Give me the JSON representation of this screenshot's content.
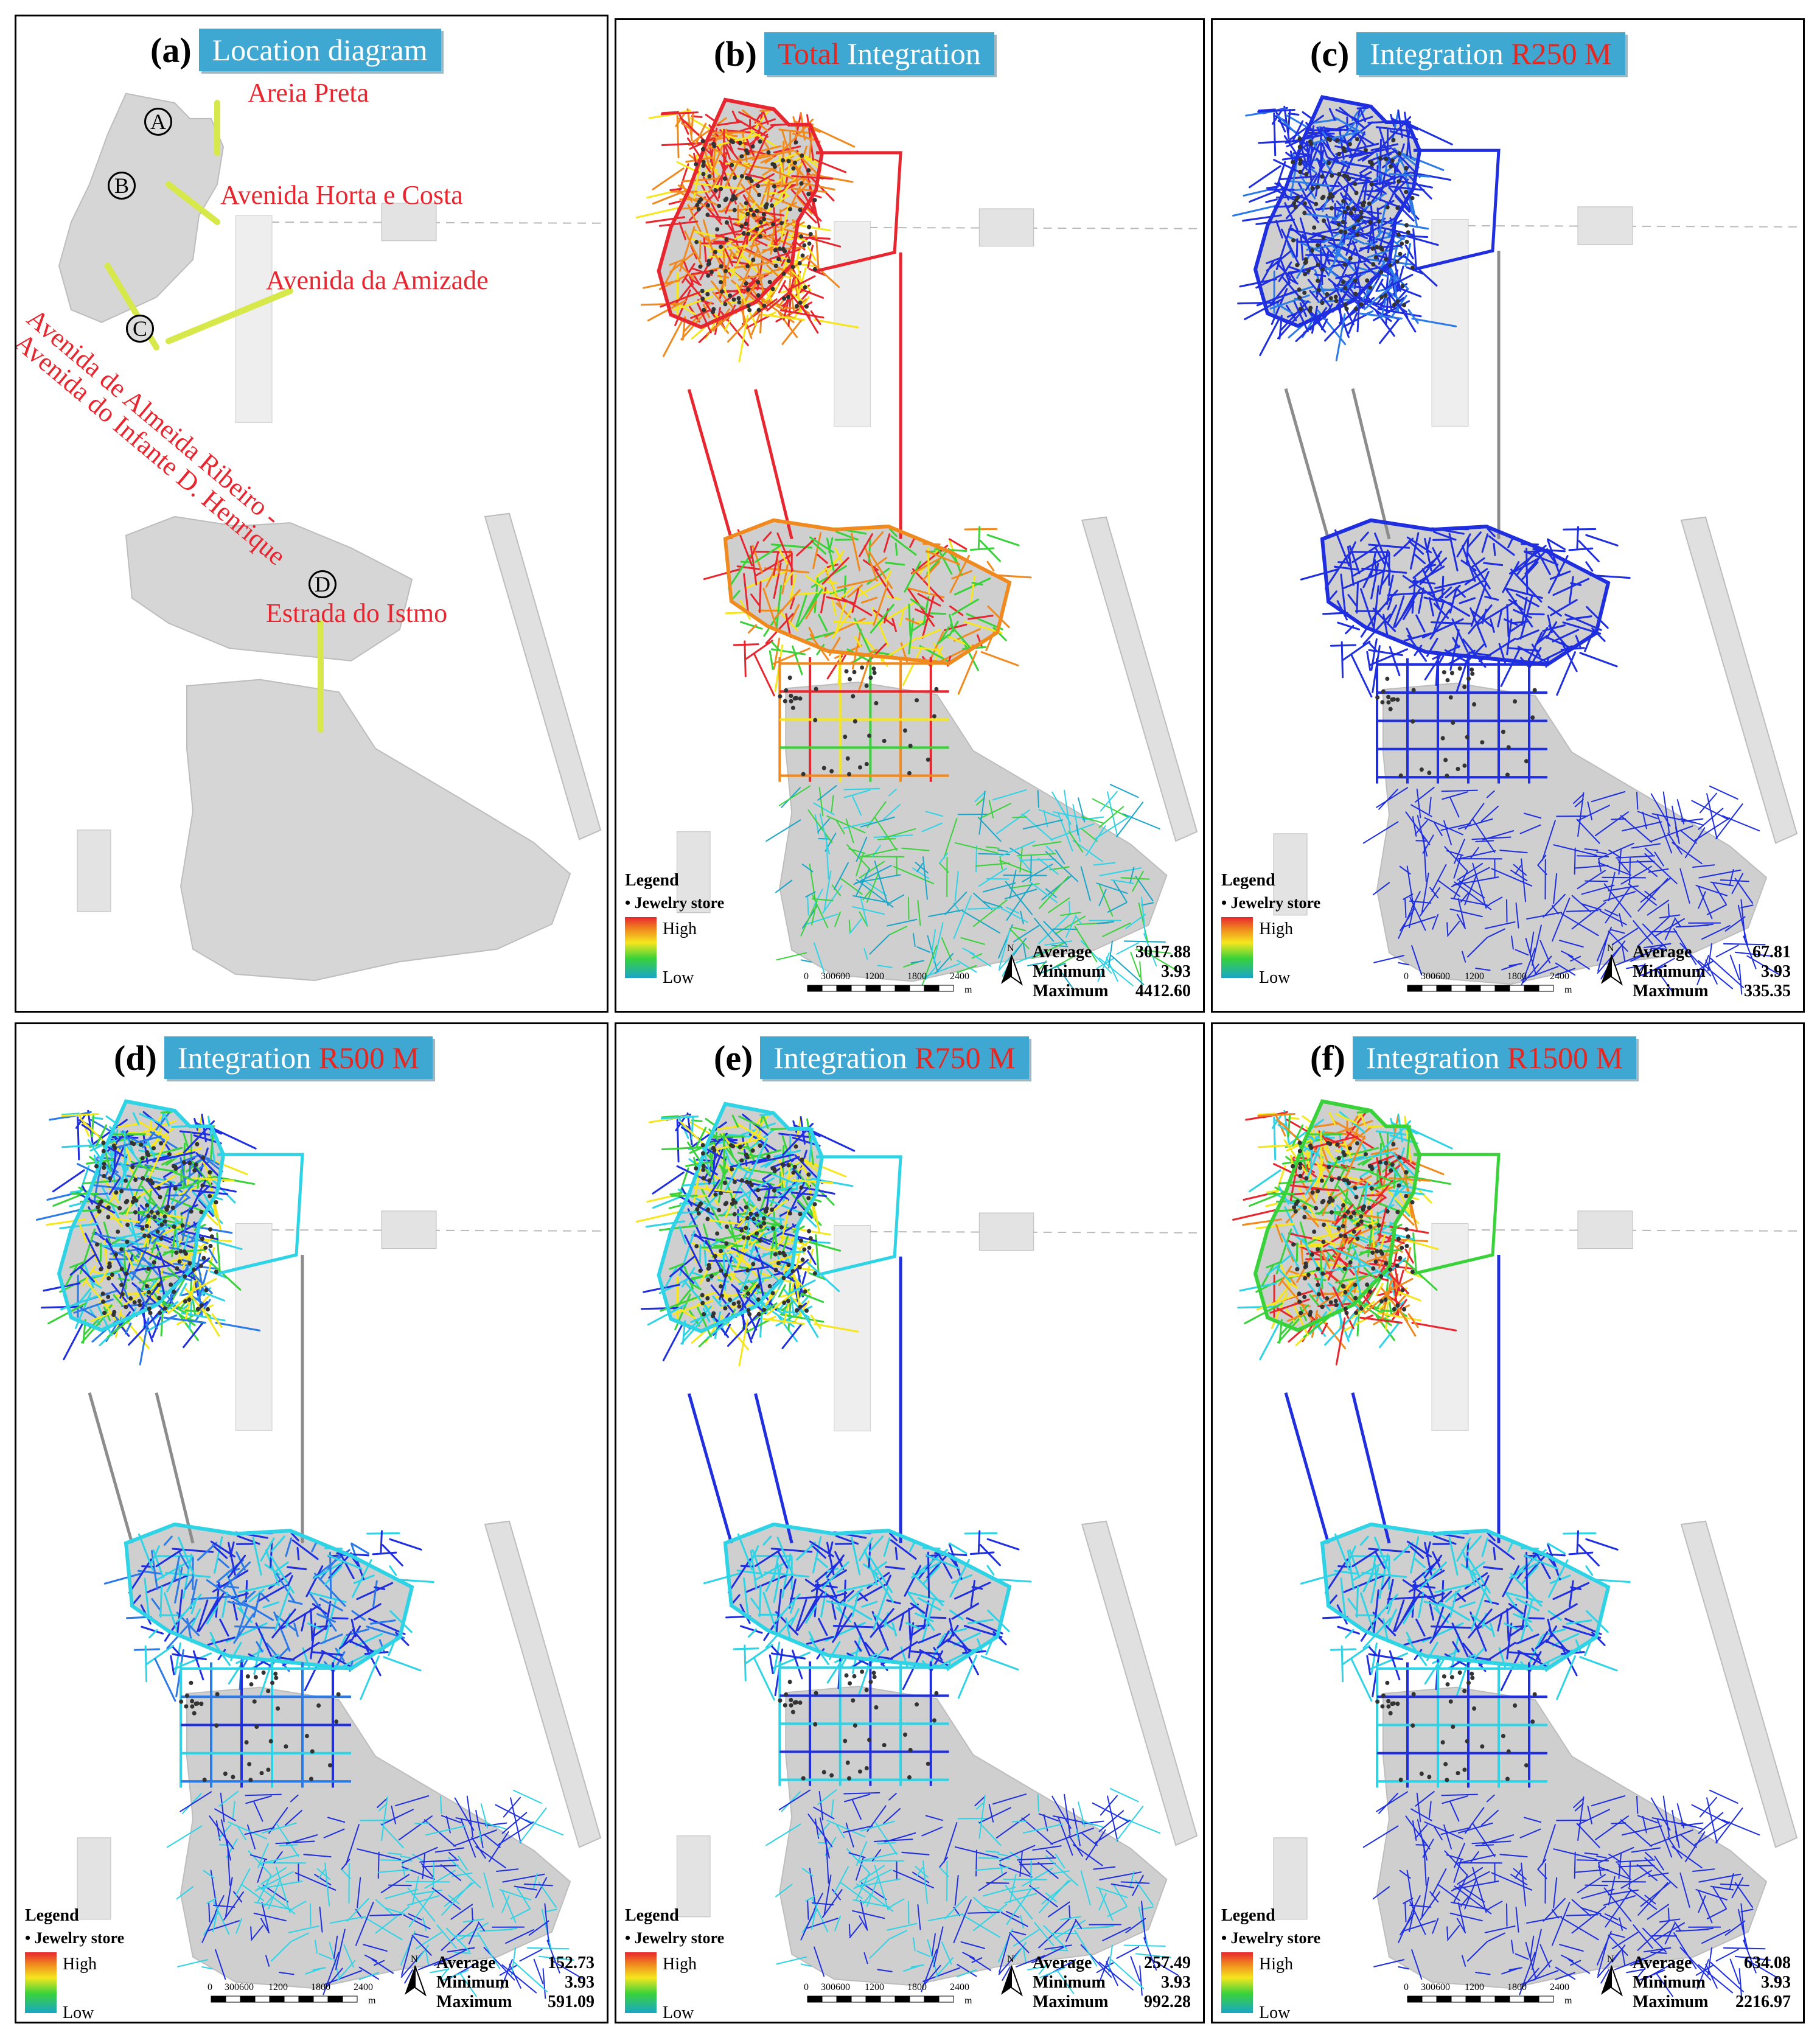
{
  "panels": [
    {
      "letter": "(a)",
      "title": [
        {
          "text": "Location diagram",
          "red": false
        }
      ]
    },
    {
      "letter": "(b)",
      "title": [
        {
          "text": "Total ",
          "red": true
        },
        {
          "text": "Integration",
          "red": false
        }
      ],
      "stats": {
        "average": "3017.88",
        "minimum": "3.93",
        "maximum": "4412.60"
      },
      "scheme": "total"
    },
    {
      "letter": "(c)",
      "title": [
        {
          "text": "Integration ",
          "red": false
        },
        {
          "text": "R250 M",
          "red": true
        }
      ],
      "stats": {
        "average": "67.81",
        "minimum": "3.93",
        "maximum": "335.35"
      },
      "scheme": "r250"
    },
    {
      "letter": "(d)",
      "title": [
        {
          "text": "Integration ",
          "red": false
        },
        {
          "text": "R500 M",
          "red": true
        }
      ],
      "stats": {
        "average": "152.73",
        "minimum": "3.93",
        "maximum": "591.09"
      },
      "scheme": "r500"
    },
    {
      "letter": "(e)",
      "title": [
        {
          "text": "Integration ",
          "red": false
        },
        {
          "text": "R750 M",
          "red": true
        }
      ],
      "stats": {
        "average": "257.49",
        "minimum": "3.93",
        "maximum": "992.28"
      },
      "scheme": "r750"
    },
    {
      "letter": "(f)",
      "title": [
        {
          "text": "Integration ",
          "red": false
        },
        {
          "text": "R1500 M",
          "red": true
        }
      ],
      "stats": {
        "average": "634.08",
        "minimum": "3.93",
        "maximum": "2216.97"
      },
      "scheme": "r1500"
    }
  ],
  "location": {
    "streets": [
      "Areia Preta",
      "Avenida Horta e Costa",
      "Avenida da Amizade",
      "Avenida de Almeida Ribeiro -",
      "Avenida do Infante D. Henrique",
      "Estrada do Istmo"
    ],
    "markers": [
      "A",
      "B",
      "C",
      "D"
    ]
  },
  "legend": {
    "title": "Legend",
    "store": "Jewelry store",
    "high": "High",
    "low": "Low"
  },
  "stat_labels": {
    "average": "Average",
    "minimum": "Minimum",
    "maximum": "Maximum"
  },
  "scale": {
    "ticks": [
      "0",
      "300",
      "600",
      "1200",
      "1800",
      "2400"
    ],
    "unit": "m",
    "north": "N"
  },
  "colors": {
    "title_box": "#3ea7d2",
    "red_text": "#e8261f",
    "low": "#1f2fe0",
    "cyan": "#2fd3e6",
    "green": "#39d23a",
    "yellow": "#f5e61e",
    "orange": "#f08a1f",
    "high": "#e8262f"
  }
}
